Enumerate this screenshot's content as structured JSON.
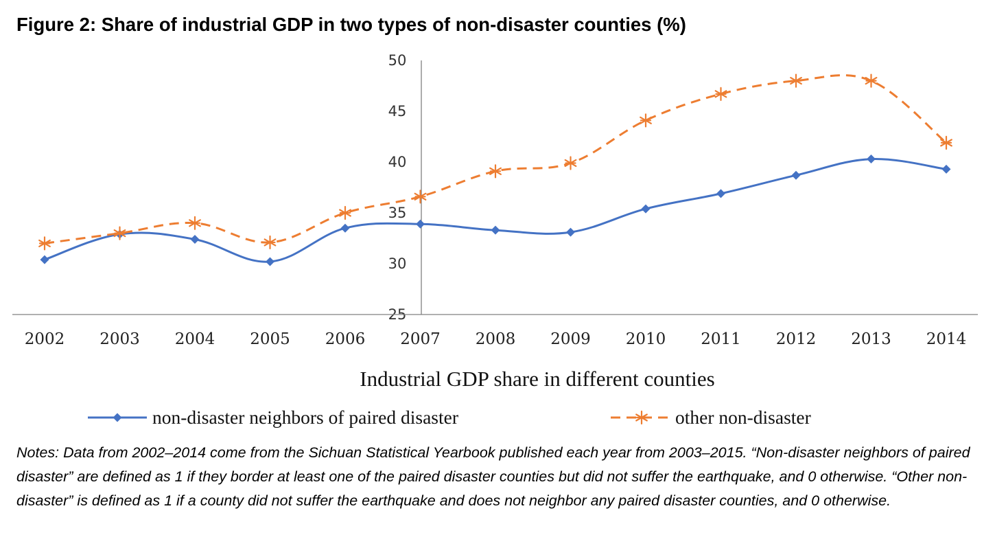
{
  "title": "Figure 2: Share of industrial GDP in two types of non-disaster counties (%)",
  "notes": "Notes: Data from 2002–2014 come from the Sichuan Statistical Yearbook published each year from 2003–2015. “Non-disaster neighbors of paired disaster” are defined as 1 if they border at least one of the paired disaster counties but did not suffer the earthquake, and 0 otherwise. “Other non-disaster” is defined as 1 if a county did not suffer the earthquake and does not neighbor any paired disaster counties, and 0 otherwise.",
  "chart_data": {
    "type": "line",
    "title": "",
    "xlabel": "Industrial GDP  share in different counties",
    "ylabel": "",
    "x": [
      "2002",
      "2003",
      "2004",
      "2005",
      "2006",
      "2007",
      "2008",
      "2009",
      "2010",
      "2011",
      "2012",
      "2013",
      "2014"
    ],
    "ylim": [
      25,
      50
    ],
    "yticks": [
      "25",
      "30",
      "35",
      "40",
      "45",
      "50"
    ],
    "grid": false,
    "smooth": true,
    "legend_position": "bottom",
    "series": [
      {
        "name": "non-disaster neighbors of paired disaster",
        "values": [
          30.4,
          32.9,
          32.4,
          30.2,
          33.5,
          33.9,
          33.3,
          33.1,
          35.4,
          36.9,
          38.7,
          40.3,
          39.3
        ],
        "color": "#4472C4",
        "line_style": "solid",
        "marker": "diamond"
      },
      {
        "name": "other non-disaster",
        "values": [
          32.0,
          33.0,
          34.0,
          32.1,
          35.0,
          36.6,
          39.1,
          39.9,
          44.1,
          46.7,
          48.0,
          48.0,
          41.9
        ],
        "color": "#ED7D31",
        "line_style": "dashed",
        "marker": "asterisk"
      }
    ]
  }
}
